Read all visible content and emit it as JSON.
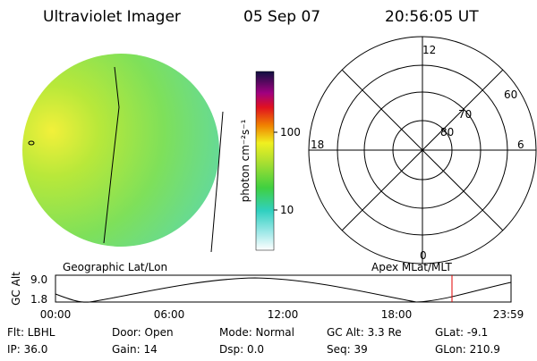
{
  "header": {
    "instrument": "Ultraviolet Imager",
    "date": "05 Sep 07",
    "time": "20:56:05 UT"
  },
  "colorbar": {
    "unit": "photon cm⁻²s⁻¹",
    "ticks": [
      "100",
      "10"
    ]
  },
  "polar": {
    "mlt_labels": [
      "12",
      "18",
      "6",
      "0"
    ],
    "lat_labels": [
      "60",
      "70",
      "80"
    ]
  },
  "captions": {
    "left": "Geographic Lat/Lon",
    "right": "Apex MLat/MLT"
  },
  "altitude": {
    "label": "GC Alt",
    "yticks": [
      "9.0",
      "1.8"
    ],
    "xticks": [
      "00:00",
      "06:00",
      "12:00",
      "18:00",
      "23:59"
    ]
  },
  "info": {
    "rows": [
      [
        "Flt: LBHL",
        "Door: Open",
        "Mode: Normal",
        "GC Alt: 3.3 Re",
        "GLat:  -9.1"
      ],
      [
        "IP: 36.0",
        "Gain: 14",
        "Dsp:    0.0",
        "Seq: 39",
        "GLon: 210.9"
      ]
    ]
  }
}
